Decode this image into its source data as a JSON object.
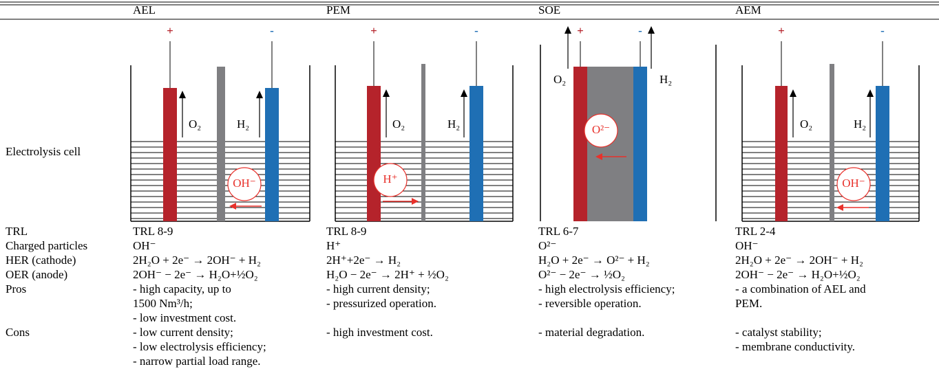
{
  "table": {
    "columns": [
      "AEL",
      "PEM",
      "SOE",
      "AEM"
    ],
    "cell_label": "Electrolysis cell",
    "diagrams": [
      {
        "plus": "+",
        "minus": "-",
        "left_gas": "O₂",
        "right_gas": "H₂",
        "ion": "OH⁻"
      },
      {
        "plus": "+",
        "minus": "-",
        "left_gas": "O₂",
        "right_gas": "H₂",
        "ion": "H⁺"
      },
      {
        "plus": "+",
        "minus": "-",
        "left_gas": "O₂",
        "right_gas": "H₂",
        "ion": "O²⁻"
      },
      {
        "plus": "+",
        "minus": "-",
        "left_gas": "O₂",
        "right_gas": "H₂",
        "ion": "OH⁻"
      }
    ],
    "rows": [
      {
        "label": "TRL",
        "cells": [
          [
            "TRL 8-9"
          ],
          [
            "TRL 8-9"
          ],
          [
            "TRL 6-7"
          ],
          [
            "TRL 2-4"
          ]
        ]
      },
      {
        "label": "Charged particles",
        "cells": [
          [
            "OH⁻"
          ],
          [
            "H⁺"
          ],
          [
            "O²⁻"
          ],
          [
            "OH⁻"
          ]
        ]
      },
      {
        "label": "HER (cathode)",
        "cells": [
          [
            "2H₂O + 2e⁻ → 2OH⁻ + H₂"
          ],
          [
            "2H⁺+2e⁻ → H₂"
          ],
          [
            "H₂O + 2e⁻ → O²⁻ + H₂"
          ],
          [
            "2H₂O + 2e⁻ → 2OH⁻ + H₂"
          ]
        ]
      },
      {
        "label": "OER (anode)",
        "cells": [
          [
            "2OH⁻ − 2e⁻ → H₂O+½O₂"
          ],
          [
            "H₂O − 2e⁻ → 2H⁺ + ½O₂"
          ],
          [
            "O²⁻ − 2e⁻ → ½O₂"
          ],
          [
            "2OH⁻ − 2e⁻ → H₂O+½O₂"
          ]
        ]
      },
      {
        "label": "Pros",
        "cells": [
          [
            "- high capacity, up to",
            "1500 Nm³/h;",
            "- low investment cost."
          ],
          [
            "- high current density;",
            "- pressurized operation."
          ],
          [
            "- high electrolysis efficiency;",
            "- reversible operation."
          ],
          [
            "- a combination of AEL and",
            "PEM."
          ]
        ]
      },
      {
        "label": "Cons",
        "cells": [
          [
            "- low current density;",
            "- low electrolysis efficiency;",
            "- narrow partial load range."
          ],
          [
            "- high investment cost."
          ],
          [
            "- material degradation."
          ],
          [
            "- catalyst stability;",
            "- membrane conductivity."
          ]
        ]
      }
    ]
  }
}
